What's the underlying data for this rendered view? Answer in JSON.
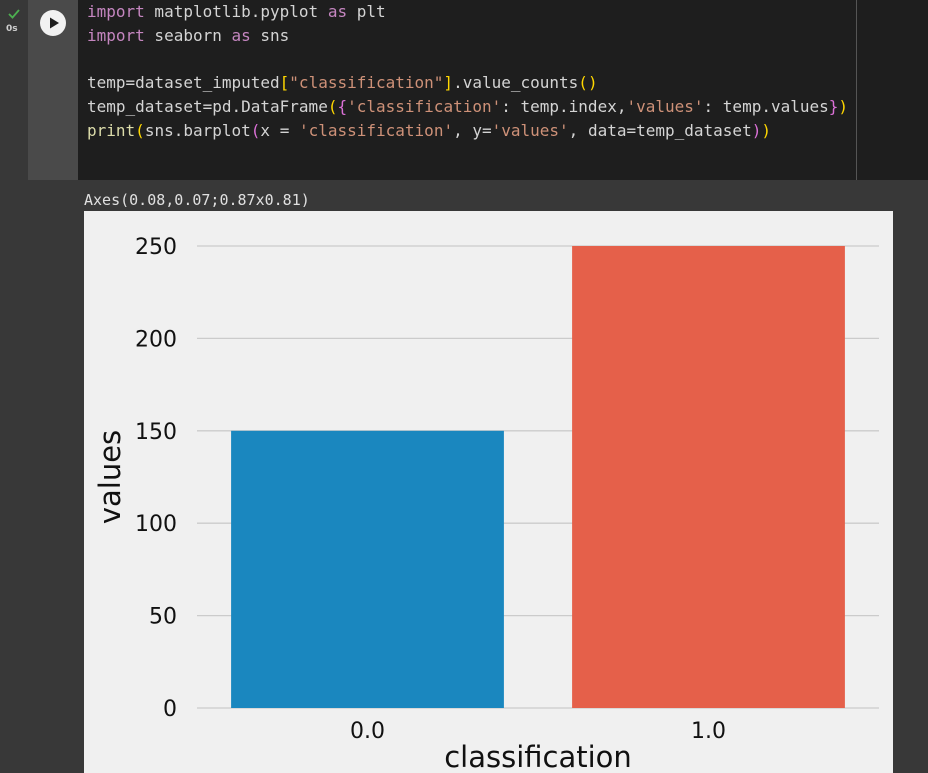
{
  "cell": {
    "status_time": "0s",
    "code_lines": [
      "import matplotlib.pyplot as plt",
      "import seaborn as sns",
      "",
      "temp=dataset_imputed[\"classification\"].value_counts()",
      "temp_dataset=pd.DataFrame({'classification': temp.index,'values': temp.values})",
      "print(sns.barplot(x = 'classification', y='values', data=temp_dataset))"
    ],
    "output_text": "Axes(0.08,0.07;0.87x0.81)"
  },
  "chart_data": {
    "type": "bar",
    "categories": [
      "0.0",
      "1.0"
    ],
    "values": [
      150,
      250
    ],
    "colors": [
      "#1a87bf",
      "#e5604a"
    ],
    "xlabel": "classification",
    "ylabel": "values",
    "ylim": [
      0,
      250
    ],
    "yticks": [
      0,
      50,
      100,
      150,
      200,
      250
    ],
    "grid": true,
    "background": "#f0f0f0",
    "grid_color": "#cbcbcb"
  }
}
